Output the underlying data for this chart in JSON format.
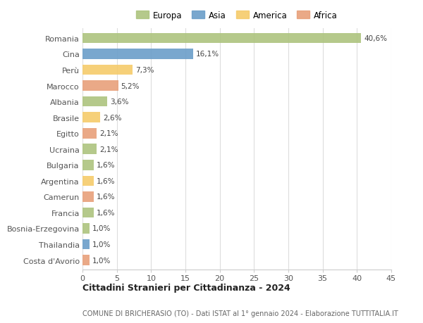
{
  "countries": [
    "Romania",
    "Cina",
    "Perù",
    "Marocco",
    "Albania",
    "Brasile",
    "Egitto",
    "Ucraina",
    "Bulgaria",
    "Argentina",
    "Camerun",
    "Francia",
    "Bosnia-Erzegovina",
    "Thailandia",
    "Costa d'Avorio"
  ],
  "values": [
    40.6,
    16.1,
    7.3,
    5.2,
    3.6,
    2.6,
    2.1,
    2.1,
    1.6,
    1.6,
    1.6,
    1.6,
    1.0,
    1.0,
    1.0
  ],
  "labels": [
    "40,6%",
    "16,1%",
    "7,3%",
    "5,2%",
    "3,6%",
    "2,6%",
    "2,1%",
    "2,1%",
    "1,6%",
    "1,6%",
    "1,6%",
    "1,6%",
    "1,0%",
    "1,0%",
    "1,0%"
  ],
  "continents": [
    "Europa",
    "Asia",
    "America",
    "Africa",
    "Europa",
    "America",
    "Africa",
    "Europa",
    "Europa",
    "America",
    "Africa",
    "Europa",
    "Europa",
    "Asia",
    "Africa"
  ],
  "colors": {
    "Europa": "#adc47e",
    "Asia": "#6b9ec9",
    "America": "#f5cb6b",
    "Africa": "#e8a07a"
  },
  "legend_order": [
    "Europa",
    "Asia",
    "America",
    "Africa"
  ],
  "title": "Cittadini Stranieri per Cittadinanza - 2024",
  "subtitle": "COMUNE DI BRICHERASIO (TO) - Dati ISTAT al 1° gennaio 2024 - Elaborazione TUTTITALIA.IT",
  "xlim": [
    0,
    45
  ],
  "xticks": [
    0,
    5,
    10,
    15,
    20,
    25,
    30,
    35,
    40,
    45
  ],
  "background_color": "#ffffff",
  "grid_color": "#dddddd"
}
